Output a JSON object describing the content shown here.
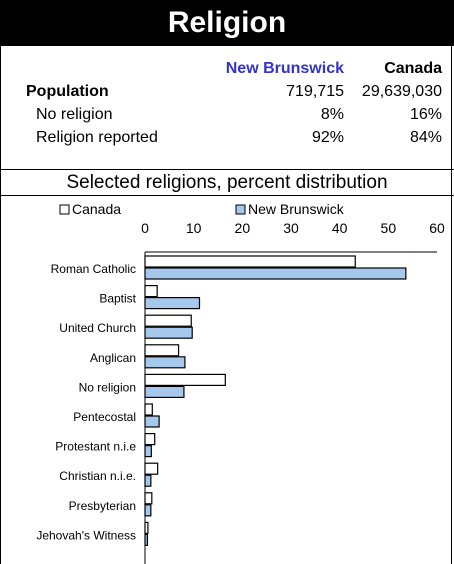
{
  "title": "Religion",
  "table": {
    "col_headers": [
      "New Brunswick",
      "Canada"
    ],
    "header_colors": {
      "new_brunswick": "#3333cc",
      "canada": "#000000"
    },
    "rows": [
      {
        "label": "Population",
        "bold": true,
        "nb": "719,715",
        "ca": "29,639,030"
      },
      {
        "label": "No religion",
        "bold": false,
        "nb": "8%",
        "ca": "16%"
      },
      {
        "label": "Religion reported",
        "bold": false,
        "nb": "92%",
        "ca": "84%"
      }
    ]
  },
  "chart_title": "Selected religions, percent distribution",
  "chart_data": {
    "type": "bar",
    "orientation": "horizontal",
    "categories": [
      "Roman Catholic",
      "Baptist",
      "United Church",
      "Anglican",
      "No religion",
      "Pentecostal",
      "Protestant n.i.e",
      "Christian n.i.e.",
      "Presbyterian",
      "Jehovah's Witness"
    ],
    "series": [
      {
        "name": "Canada",
        "color": "#ffffff",
        "values": [
          43.2,
          2.5,
          9.5,
          6.9,
          16.5,
          1.5,
          2.0,
          2.6,
          1.4,
          0.6
        ]
      },
      {
        "name": "New Brunswick",
        "color": "#a6c8ec",
        "values": [
          53.6,
          11.2,
          9.7,
          8.2,
          8.0,
          2.9,
          1.3,
          1.2,
          1.2,
          0.5
        ]
      }
    ],
    "xlim": [
      0,
      60
    ],
    "xticks": [
      0,
      10,
      20,
      30,
      40,
      50,
      60
    ],
    "legend": "top",
    "grid": false
  }
}
